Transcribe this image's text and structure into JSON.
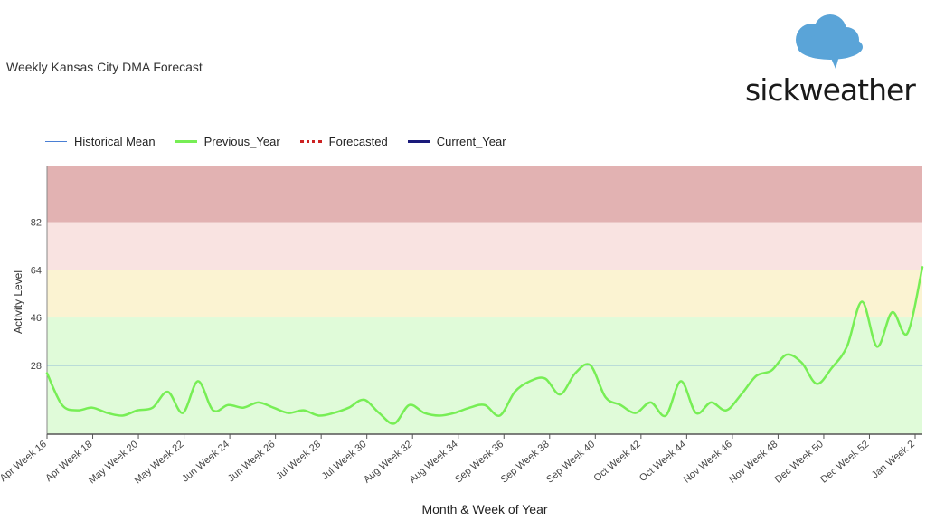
{
  "page": {
    "title": "Weekly Kansas City DMA Forecast",
    "logo_text": "sickweather"
  },
  "chart_data": {
    "type": "line",
    "title": "Weekly Kansas City DMA Forecast",
    "xlabel": "Month & Week of Year",
    "ylabel": "Activity Level",
    "ylim": [
      2,
      103
    ],
    "yticks": [
      28,
      46,
      64,
      82
    ],
    "x_labels": [
      "Apr Week 16",
      "Apr Week 18",
      "May Week 20",
      "May Week 22",
      "Jun Week 24",
      "Jun Week 26",
      "Jul Week 28",
      "Jul Week 30",
      "Aug Week 32",
      "Aug Week 34",
      "Sep Week 36",
      "Sep Week 38",
      "Sep Week 40",
      "Oct Week 42",
      "Oct Week 44",
      "Nov Week 46",
      "Nov Week 48",
      "Dec Week 50",
      "Dec Week 52",
      "Jan Week 2"
    ],
    "bands": [
      {
        "from": 2,
        "to": 46,
        "color": "#e0fbd9"
      },
      {
        "from": 46,
        "to": 64,
        "color": "#fbf3d2"
      },
      {
        "from": 64,
        "to": 82,
        "color": "#f9e3e1"
      },
      {
        "from": 82,
        "to": 103,
        "color": "#e2b2b2"
      }
    ],
    "series": [
      {
        "name": "Historical Mean",
        "style": "solid-thin",
        "color": "#4a7fd4",
        "values": [
          28,
          28,
          28,
          28,
          28,
          28,
          28,
          28,
          28,
          28,
          28,
          28,
          28,
          28,
          28,
          28,
          28,
          28,
          28,
          28,
          28,
          28,
          28,
          28,
          28,
          28,
          28,
          28,
          28,
          28,
          28,
          28,
          28,
          28,
          28,
          28,
          28,
          28,
          28,
          28,
          28,
          28,
          28,
          28,
          28,
          28,
          28,
          28,
          28,
          28,
          28,
          28,
          28,
          28,
          28,
          28,
          28,
          28,
          28,
          28,
          28,
          28,
          28,
          28,
          28,
          28,
          28,
          28,
          28,
          28,
          28,
          28,
          28,
          28,
          28,
          28,
          28,
          28,
          28
        ]
      },
      {
        "name": "Previous_Year",
        "style": "solid",
        "color": "#77ee55",
        "values": [
          25,
          13,
          11,
          12,
          10,
          9,
          11,
          12,
          18,
          10,
          22,
          11,
          13,
          12,
          14,
          12,
          10,
          11,
          9,
          10,
          12,
          15,
          10,
          6,
          13,
          10,
          9,
          10,
          12,
          13,
          9,
          18,
          22,
          23,
          17,
          25,
          28,
          16,
          13,
          10,
          14,
          9,
          22,
          10,
          14,
          11,
          17,
          24,
          26,
          32,
          29,
          21,
          27,
          35,
          52,
          35,
          48,
          40,
          65
        ]
      },
      {
        "name": "Forecasted",
        "style": "dotted",
        "color": "#cc2222",
        "values": [
          null,
          null,
          null,
          null,
          null,
          null,
          null,
          null,
          null,
          null,
          null,
          null,
          null,
          null,
          null,
          null,
          null,
          null,
          null,
          null,
          null,
          null,
          null,
          null,
          null,
          null,
          null,
          null,
          null,
          null,
          null,
          null,
          null,
          null,
          null,
          null,
          null,
          null,
          null,
          null,
          null,
          null,
          null,
          null,
          null,
          null,
          null,
          null,
          null,
          null,
          null,
          null,
          null,
          null,
          null,
          null,
          null,
          null,
          null
        ]
      },
      {
        "name": "Current_Year",
        "style": "solid-thick",
        "color": "#1a1a7a",
        "values": []
      }
    ]
  }
}
